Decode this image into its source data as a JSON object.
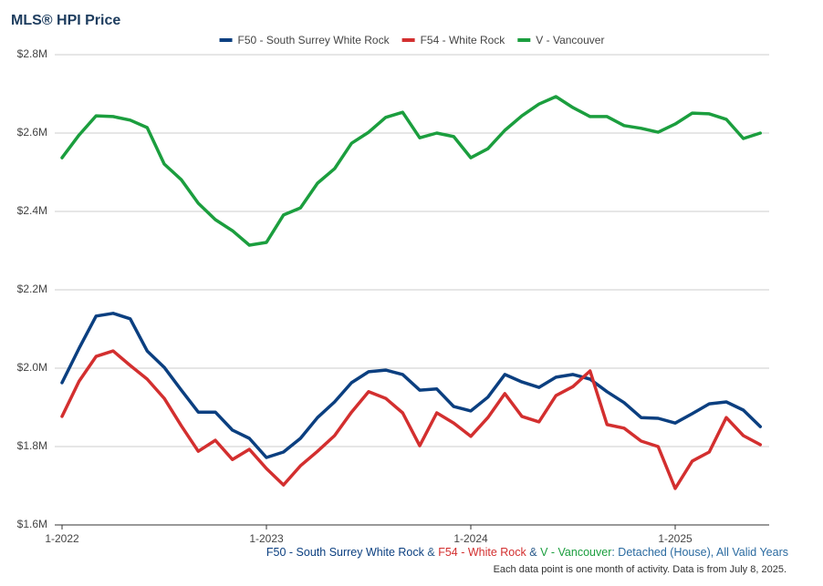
{
  "chart_data": {
    "type": "line",
    "title": "MLS® HPI Price",
    "categories": [
      "1-2022",
      null,
      null,
      null,
      null,
      null,
      null,
      null,
      null,
      null,
      null,
      null,
      "1-2023",
      null,
      null,
      null,
      null,
      null,
      null,
      null,
      null,
      null,
      null,
      null,
      "1-2024",
      null,
      null,
      null,
      null,
      null,
      null,
      null,
      null,
      null,
      null,
      null,
      "1-2025",
      null,
      null,
      null,
      null,
      null
    ],
    "series": [
      {
        "name": "F50 - South Surrey White Rock",
        "color": "#0b3f80",
        "values": [
          1963000,
          2051000,
          2133000,
          2140000,
          2126000,
          2044000,
          2002000,
          1944000,
          1888000,
          1888000,
          1842000,
          1821000,
          1772000,
          1786000,
          1821000,
          1874000,
          1914000,
          1963000,
          1991000,
          1995000,
          1984000,
          1944000,
          1947000,
          1902000,
          1891000,
          1926000,
          1984000,
          1965000,
          1951000,
          1977000,
          1984000,
          1972000,
          1940000,
          1912000,
          1874000,
          1872000,
          1860000,
          1884000,
          1909000,
          1914000,
          1893000,
          1851000
        ]
      },
      {
        "name": "F54 - White Rock",
        "color": "#d32f2f",
        "values": [
          1877000,
          1967000,
          2030000,
          2044000,
          2007000,
          1972000,
          1923000,
          1853000,
          1788000,
          1816000,
          1767000,
          1793000,
          1744000,
          1702000,
          1751000,
          1788000,
          1828000,
          1888000,
          1940000,
          1923000,
          1886000,
          1802000,
          1886000,
          1860000,
          1826000,
          1874000,
          1935000,
          1877000,
          1863000,
          1930000,
          1953000,
          1993000,
          1856000,
          1847000,
          1814000,
          1800000,
          1693000,
          1763000,
          1786000,
          1874000,
          1828000,
          1805000
        ]
      },
      {
        "name": "V - Vancouver",
        "color": "#1b9e3e",
        "values": [
          2537000,
          2595000,
          2644000,
          2642000,
          2633000,
          2614000,
          2521000,
          2481000,
          2421000,
          2379000,
          2351000,
          2314000,
          2321000,
          2391000,
          2409000,
          2472000,
          2509000,
          2574000,
          2602000,
          2640000,
          2653000,
          2588000,
          2600000,
          2591000,
          2537000,
          2560000,
          2607000,
          2644000,
          2674000,
          2693000,
          2665000,
          2642000,
          2642000,
          2619000,
          2612000,
          2602000,
          2623000,
          2651000,
          2649000,
          2635000,
          2586000,
          2600000
        ]
      }
    ],
    "ylim": [
      1600000,
      2800000
    ],
    "yticks": [
      {
        "value": 1600000,
        "label": "$1.6M"
      },
      {
        "value": 1800000,
        "label": "$1.8M"
      },
      {
        "value": 2000000,
        "label": "$2.0M"
      },
      {
        "value": 2200000,
        "label": "$2.2M"
      },
      {
        "value": 2400000,
        "label": "$2.4M"
      },
      {
        "value": 2600000,
        "label": "$2.6M"
      },
      {
        "value": 2800000,
        "label": "$2.8M"
      }
    ],
    "grid": true,
    "legend": "top",
    "caption": {
      "connector": "&",
      "suffix": ": Detached (House), All Valid Years"
    },
    "note": "Each data point is one month of activity. Data is from July 8, 2025."
  }
}
